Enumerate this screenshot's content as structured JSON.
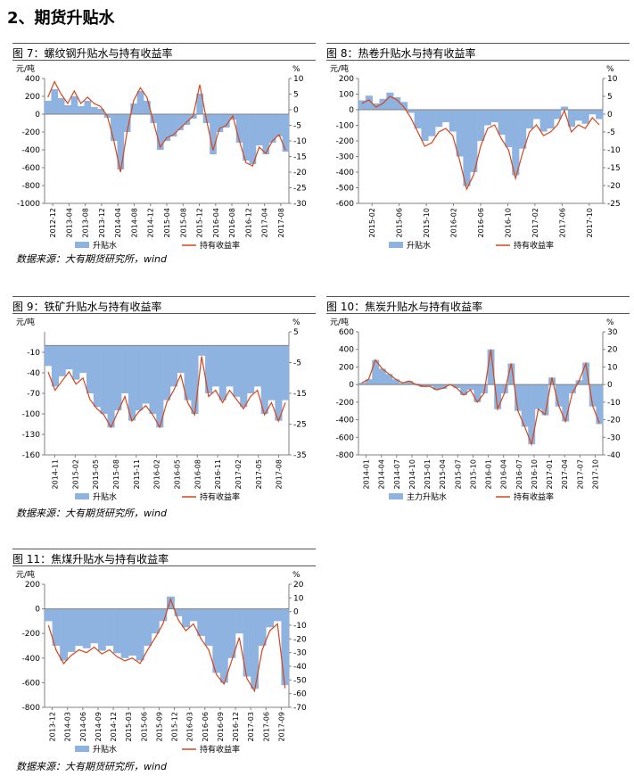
{
  "section_title": "2、期货升贴水",
  "sources": [
    "数据来源：大有期货研究所，wind",
    "数据来源：大有期货研究所，wind",
    "数据来源：大有期货研究所，wind"
  ],
  "colors": {
    "bar": "#8FB3E0",
    "line": "#D4451A",
    "axis": "#808080"
  },
  "chart_data": [
    {
      "title": "图 7：螺纹钢升贴水与持有收益率",
      "type": "bar+line",
      "left_unit": "元/吨",
      "right_unit": "%",
      "left_ticks": [
        400,
        200,
        0,
        -200,
        -400,
        -600,
        -800,
        -1000
      ],
      "right_ticks": [
        10,
        5,
        0,
        -5,
        -10,
        -15,
        -20,
        -25,
        -30
      ],
      "ylim_left": [
        -1000,
        400
      ],
      "ylim_right": [
        -30,
        10
      ],
      "x_ticks": [
        "2012-12",
        "2013-04",
        "2013-08",
        "2013-12",
        "2014-04",
        "2014-08",
        "2014-12",
        "2015-04",
        "2015-08",
        "2015-12",
        "2016-04",
        "2016-08",
        "2016-12",
        "2017-04",
        "2017-08"
      ],
      "legend": [
        "升贴水",
        "持有收益率"
      ],
      "series": [
        {
          "name": "升贴水",
          "values": [
            150,
            280,
            180,
            100,
            200,
            90,
            150,
            80,
            60,
            -40,
            -300,
            -620,
            -200,
            120,
            260,
            150,
            -100,
            -400,
            -300,
            -250,
            -180,
            -120,
            -50,
            230,
            -100,
            -450,
            -200,
            -150,
            -60,
            -320,
            -520,
            -560,
            -350,
            -450,
            -320,
            -250,
            -420
          ]
        },
        {
          "name": "持有收益率",
          "values": [
            4,
            9,
            5,
            2,
            6,
            2,
            4,
            2,
            1,
            -2,
            -10,
            -20,
            -7,
            3,
            7,
            4,
            -4,
            -12,
            -9,
            -8,
            -6,
            -4,
            -2,
            8,
            -3,
            -13,
            -6,
            -5,
            -2,
            -10,
            -17,
            -18,
            -12,
            -14,
            -10,
            -8,
            -13
          ]
        }
      ]
    },
    {
      "title": "图 8：热卷升贴水与持有收益率",
      "type": "bar+line",
      "left_unit": "元/吨",
      "right_unit": "%",
      "left_ticks": [
        200,
        100,
        0,
        -100,
        -200,
        -300,
        -400,
        -500,
        -600
      ],
      "right_ticks": [
        10,
        5,
        0,
        -5,
        -10,
        -15,
        -20,
        -25
      ],
      "ylim_left": [
        -600,
        200
      ],
      "ylim_right": [
        -25,
        10
      ],
      "x_ticks": [
        "2015-02",
        "2015-06",
        "2015-10",
        "2016-02",
        "2016-06",
        "2016-10",
        "2017-02",
        "2017-06",
        "2017-10"
      ],
      "legend": [
        "升贴水",
        "持有收益率"
      ],
      "series": [
        {
          "name": "升贴水",
          "values": [
            60,
            90,
            40,
            70,
            110,
            80,
            50,
            -20,
            -120,
            -200,
            -170,
            -110,
            -80,
            -140,
            -300,
            -490,
            -400,
            -200,
            -100,
            -80,
            -160,
            -240,
            -420,
            -250,
            -120,
            -60,
            -140,
            -120,
            -60,
            20,
            -110,
            -70,
            -90,
            -30,
            -60
          ]
        },
        {
          "name": "持有收益率",
          "values": [
            3,
            4,
            2,
            3,
            5,
            4,
            2,
            -1,
            -5,
            -9,
            -8,
            -5,
            -4,
            -6,
            -13,
            -21,
            -17,
            -9,
            -4,
            -3,
            -7,
            -10,
            -18,
            -11,
            -5,
            -3,
            -6,
            -5,
            -3,
            1,
            -5,
            -3,
            -4,
            -1,
            -3
          ]
        }
      ]
    },
    {
      "title": "图 9：铁矿升贴水与持有收益率",
      "type": "bar+line",
      "left_unit": "元/吨",
      "right_unit": "%",
      "left_ticks": [
        -10,
        -40,
        -70,
        -100,
        -130,
        -160
      ],
      "right_ticks": [
        5,
        -5,
        -15,
        -25,
        -35
      ],
      "ylim_left": [
        -160,
        20
      ],
      "ylim_right": [
        -35,
        5
      ],
      "x_ticks": [
        "2014-11",
        "2015-02",
        "2015-05",
        "2015-08",
        "2015-11",
        "2016-02",
        "2016-05",
        "2016-08",
        "2016-11",
        "2017-02",
        "2017-05",
        "2017-08"
      ],
      "legend": [
        "升贴水",
        "持有收益率"
      ],
      "series": [
        {
          "name": "升贴水",
          "values": [
            -30,
            -60,
            -45,
            -35,
            -50,
            -40,
            -70,
            -90,
            -100,
            -120,
            -95,
            -70,
            -110,
            -95,
            -85,
            -100,
            -120,
            -80,
            -60,
            -40,
            -80,
            -100,
            -15,
            -70,
            -60,
            -80,
            -60,
            -75,
            -90,
            -70,
            -60,
            -100,
            -80,
            -110,
            -80
          ]
        },
        {
          "name": "持有收益率",
          "values": [
            -8,
            -14,
            -11,
            -8,
            -12,
            -10,
            -17,
            -20,
            -22,
            -26,
            -21,
            -16,
            -24,
            -21,
            -19,
            -22,
            -26,
            -18,
            -14,
            -9,
            -18,
            -22,
            -3,
            -16,
            -14,
            -18,
            -14,
            -17,
            -20,
            -16,
            -14,
            -22,
            -18,
            -24,
            -18
          ]
        }
      ]
    },
    {
      "title": "图 10：焦炭升贴水与持有收益率",
      "type": "bar+line",
      "left_unit": "元/吨",
      "right_unit": "%",
      "left_ticks": [
        600,
        400,
        200,
        0,
        -200,
        -400,
        -600,
        -800
      ],
      "right_ticks": [
        30,
        20,
        10,
        0,
        -10,
        -20,
        -30,
        -40
      ],
      "ylim_left": [
        -800,
        600
      ],
      "ylim_right": [
        -40,
        30
      ],
      "x_ticks": [
        "2014-01",
        "2014-04",
        "2014-07",
        "2014-10",
        "2015-01",
        "2015-04",
        "2015-07",
        "2015-10",
        "2016-01",
        "2016-04",
        "2016-07",
        "2016-10",
        "2017-01",
        "2017-04",
        "2017-07",
        "2017-10"
      ],
      "legend": [
        "主力升贴水",
        "持有收益率"
      ],
      "series": [
        {
          "name": "主力升贴水",
          "values": [
            20,
            60,
            280,
            180,
            120,
            60,
            20,
            40,
            10,
            -30,
            -20,
            -60,
            -50,
            -10,
            -40,
            -120,
            -60,
            -200,
            -100,
            400,
            -280,
            -100,
            240,
            -300,
            -480,
            -680,
            -280,
            -350,
            80,
            -250,
            -420,
            -100,
            50,
            250,
            -250,
            -450
          ]
        },
        {
          "name": "持有收益率",
          "values": [
            1,
            3,
            14,
            9,
            6,
            3,
            1,
            2,
            0,
            -1,
            -1,
            -3,
            -2,
            0,
            -2,
            -6,
            -3,
            -10,
            -5,
            20,
            -14,
            -5,
            12,
            -15,
            -24,
            -34,
            -14,
            -17,
            4,
            -12,
            -21,
            -5,
            2,
            12,
            -12,
            -22
          ]
        }
      ]
    },
    {
      "title": "图 11：焦煤升贴水与持有收益率",
      "type": "bar+line",
      "left_unit": "元/吨",
      "right_unit": "%",
      "left_ticks": [
        200,
        0,
        -200,
        -400,
        -600,
        -800
      ],
      "right_ticks": [
        20,
        10,
        0,
        -10,
        -20,
        -30,
        -40,
        -50,
        -60,
        -70
      ],
      "ylim_left": [
        -800,
        200
      ],
      "ylim_right": [
        -70,
        20
      ],
      "x_ticks": [
        "2013-12",
        "2014-03",
        "2014-06",
        "2014-09",
        "2014-12",
        "2015-03",
        "2015-06",
        "2015-09",
        "2015-12",
        "2016-03",
        "2016-06",
        "2016-09",
        "2016-12",
        "2017-03",
        "2017-06",
        "2017-09"
      ],
      "legend": [
        "升贴水",
        "持有收益率"
      ],
      "series": [
        {
          "name": "升贴水",
          "values": [
            -100,
            -300,
            -420,
            -350,
            -300,
            -320,
            -280,
            -340,
            -300,
            -360,
            -400,
            -380,
            -420,
            -300,
            -200,
            -100,
            100,
            -60,
            -150,
            -100,
            -220,
            -300,
            -520,
            -600,
            -400,
            -200,
            -550,
            -650,
            -300,
            -150,
            -100,
            -620
          ]
        },
        {
          "name": "持有收益率",
          "values": [
            -10,
            -28,
            -38,
            -32,
            -28,
            -30,
            -26,
            -31,
            -28,
            -33,
            -36,
            -34,
            -38,
            -28,
            -19,
            -9,
            9,
            -6,
            -14,
            -9,
            -20,
            -28,
            -46,
            -53,
            -36,
            -19,
            -49,
            -58,
            -28,
            -14,
            -9,
            -56
          ]
        }
      ]
    }
  ]
}
